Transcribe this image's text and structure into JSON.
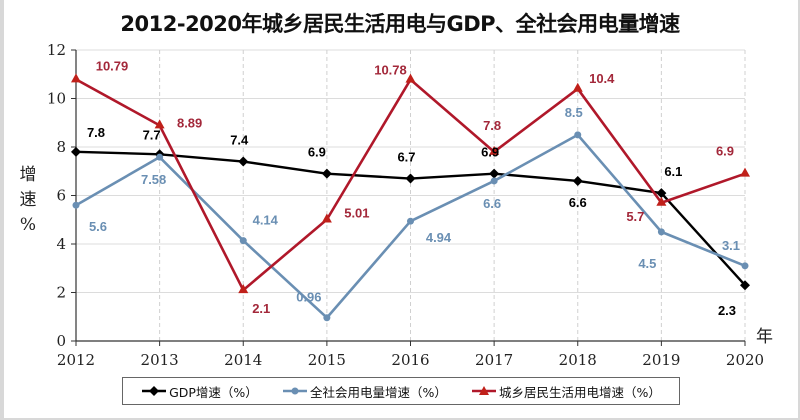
{
  "chart_data": {
    "type": "line",
    "title": "2012-2020年城乡居民生活用电与GDP、全社会用电量增速",
    "xlabel": "年",
    "ylabel": "增速%",
    "ylabel_chars": [
      "增",
      "速",
      "%"
    ],
    "categories": [
      "2012",
      "2013",
      "2014",
      "2015",
      "2016",
      "2017",
      "2018",
      "2019",
      "2020"
    ],
    "ylim": [
      0,
      12
    ],
    "yticks": [
      0,
      2,
      4,
      6,
      8,
      10,
      12
    ],
    "grid": true,
    "legend_position": "bottom",
    "series": [
      {
        "name": "GDP增速（%）",
        "color": "#000000",
        "marker": "diamond",
        "values": [
          7.8,
          7.7,
          7.4,
          6.9,
          6.7,
          6.9,
          6.6,
          6.1,
          2.3
        ],
        "labels": [
          "7.8",
          "7.7",
          "7.4",
          "6.9",
          "6.7",
          "6.9",
          "6.6",
          "6.1",
          "2.3"
        ]
      },
      {
        "name": "全社会用电量增速（%）",
        "color": "#6a8fb3",
        "marker": "circle",
        "values": [
          5.6,
          7.58,
          4.14,
          0.96,
          4.94,
          6.6,
          8.5,
          4.5,
          3.1
        ],
        "labels": [
          "5.6",
          "7.58",
          "4.14",
          "0.96",
          "4.94",
          "6.6",
          "8.5",
          "4.5",
          "3.1"
        ]
      },
      {
        "name": "城乡居民生活用电增速（%）",
        "color": "#b0182a",
        "label_color": "#a3283a",
        "marker": "triangle",
        "values": [
          10.79,
          8.89,
          2.1,
          5.01,
          10.78,
          7.8,
          10.4,
          5.7,
          6.9
        ],
        "labels": [
          "10.79",
          "8.89",
          "2.1",
          "5.01",
          "10.78",
          "7.8",
          "10.4",
          "5.7",
          "6.9"
        ]
      }
    ]
  }
}
